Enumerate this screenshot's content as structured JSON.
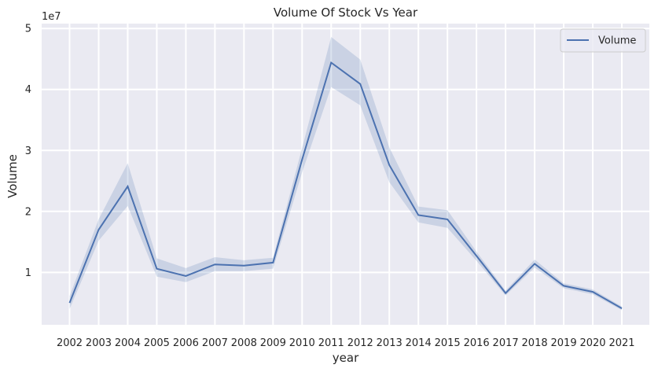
{
  "chart_data": {
    "type": "line",
    "title": "Volume Of Stock Vs Year",
    "xlabel": "year",
    "ylabel": "Volume",
    "y_scale_label": "1e7",
    "y_multiplier": 10000000,
    "x": [
      "2002",
      "2003",
      "2004",
      "2005",
      "2006",
      "2007",
      "2008",
      "2009",
      "2010",
      "2011",
      "2012",
      "2013",
      "2014",
      "2015",
      "2016",
      "2017",
      "2018",
      "2019",
      "2020",
      "2021"
    ],
    "series": [
      {
        "name": "Volume",
        "color": "#4c72b0",
        "values": [
          0.5,
          1.7,
          2.41,
          1.06,
          0.94,
          1.13,
          1.11,
          1.16,
          2.85,
          4.44,
          4.09,
          2.76,
          1.94,
          1.87,
          1.27,
          0.66,
          1.14,
          0.78,
          0.68,
          0.41
        ],
        "ci_lower": [
          0.4,
          1.52,
          2.09,
          0.93,
          0.84,
          1.02,
          1.02,
          1.06,
          2.64,
          4.04,
          3.74,
          2.48,
          1.82,
          1.73,
          1.19,
          0.62,
          1.08,
          0.74,
          0.64,
          0.38
        ],
        "ci_upper": [
          0.61,
          1.87,
          2.79,
          1.23,
          1.07,
          1.25,
          1.2,
          1.24,
          3.04,
          4.86,
          4.49,
          3.05,
          2.08,
          2.02,
          1.34,
          0.7,
          1.21,
          0.82,
          0.72,
          0.44
        ]
      }
    ],
    "yticks": [
      1,
      2,
      3,
      4,
      5
    ],
    "ylim": [
      0.14,
      5.08
    ],
    "grid": true,
    "legend_position": "top-right"
  }
}
